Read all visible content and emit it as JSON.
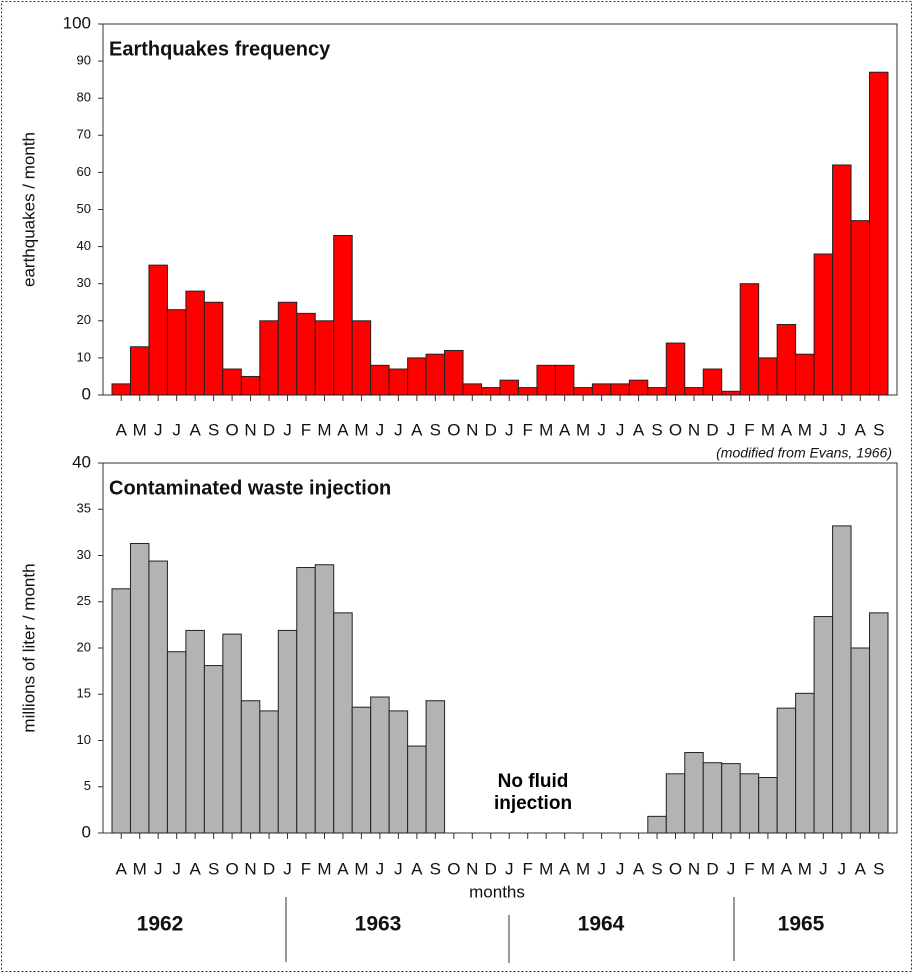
{
  "chart_data": [
    {
      "type": "bar",
      "title": "Earthquakes frequency",
      "ylabel": "earthquakes / month",
      "categories": [
        "A",
        "M",
        "J",
        "J",
        "A",
        "S",
        "O",
        "N",
        "D",
        "J",
        "F",
        "M",
        "A",
        "M",
        "J",
        "J",
        "A",
        "S",
        "O",
        "N",
        "D",
        "J",
        "F",
        "M",
        "A",
        "M",
        "J",
        "J",
        "A",
        "S",
        "O",
        "N",
        "D",
        "J",
        "F",
        "M",
        "A",
        "M",
        "J",
        "J",
        "A",
        "S"
      ],
      "values": [
        3,
        13,
        35,
        23,
        28,
        25,
        7,
        5,
        20,
        25,
        22,
        20,
        43,
        20,
        8,
        7,
        10,
        11,
        12,
        3,
        2,
        4,
        2,
        8,
        8,
        2,
        3,
        3,
        4,
        2,
        14,
        2,
        7,
        1,
        30,
        10,
        19,
        11,
        38,
        62,
        47,
        87
      ],
      "color": "#ff0000",
      "ylim": [
        0,
        100
      ],
      "yticks": [
        0,
        10,
        20,
        30,
        40,
        50,
        60,
        70,
        80,
        90,
        100
      ],
      "annotation": "(modified from Evans, 1966)"
    },
    {
      "type": "bar",
      "title": "Contaminated waste injection",
      "ylabel": "millions of liter / month",
      "xlabel": "months",
      "categories": [
        "A",
        "M",
        "J",
        "J",
        "A",
        "S",
        "O",
        "N",
        "D",
        "J",
        "F",
        "M",
        "A",
        "M",
        "J",
        "J",
        "A",
        "S",
        "O",
        "N",
        "D",
        "J",
        "F",
        "M",
        "A",
        "M",
        "J",
        "J",
        "A",
        "S",
        "O",
        "N",
        "D",
        "J",
        "F",
        "M",
        "A",
        "M",
        "J",
        "J",
        "A",
        "S"
      ],
      "values": [
        26.4,
        31.3,
        29.4,
        19.6,
        21.9,
        18.1,
        21.5,
        14.3,
        13.2,
        21.9,
        28.7,
        29,
        23.8,
        13.6,
        14.7,
        13.2,
        9.4,
        14.3,
        0,
        0,
        0,
        0,
        0,
        0,
        0,
        0,
        0,
        0,
        0,
        1.8,
        6.4,
        8.7,
        7.6,
        7.5,
        6.4,
        6,
        13.5,
        15.1,
        23.4,
        33.2,
        20,
        23.8
      ],
      "color": "#b3b3b3",
      "ylim": [
        0,
        40
      ],
      "yticks": [
        0,
        5,
        10,
        15,
        20,
        25,
        30,
        35,
        40
      ],
      "annotation": "No fluid injection",
      "years": [
        "1962",
        "1963",
        "1964",
        "1965"
      ]
    }
  ]
}
